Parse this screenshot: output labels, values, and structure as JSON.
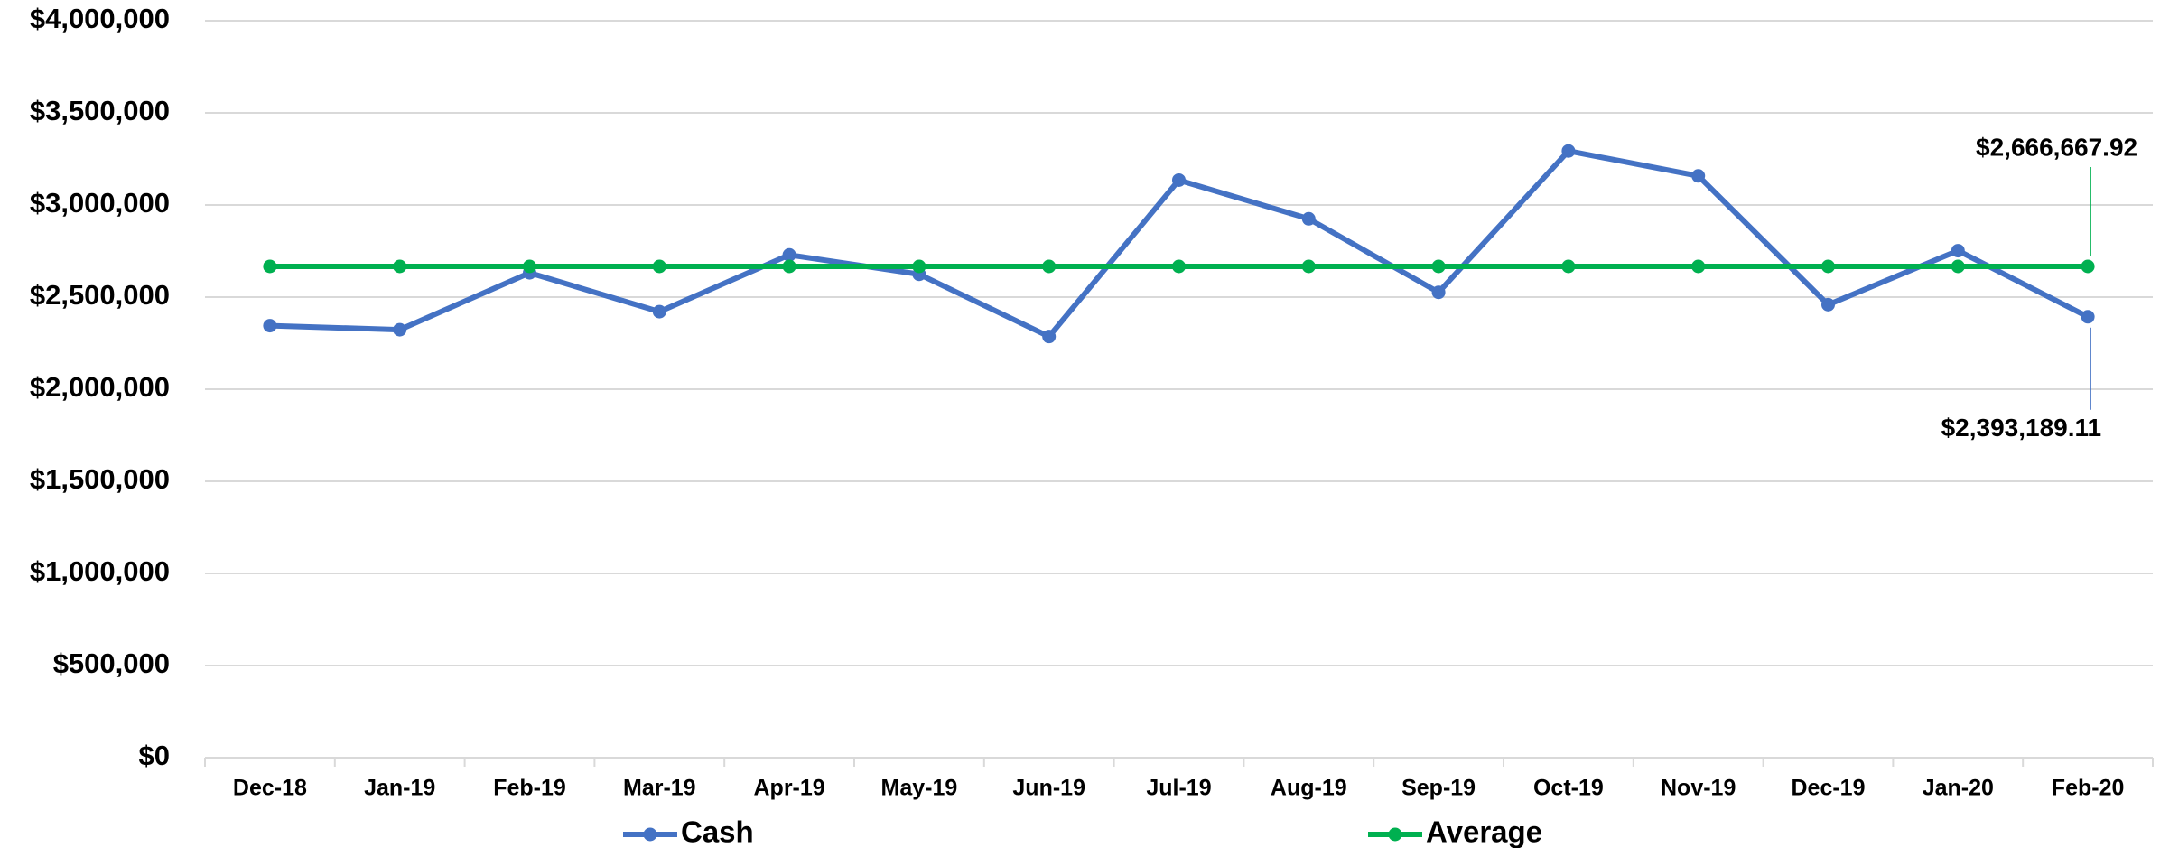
{
  "chart_data": {
    "type": "line",
    "categories": [
      "Dec-18",
      "Jan-19",
      "Feb-19",
      "Mar-19",
      "Apr-19",
      "May-19",
      "Jun-19",
      "Jul-19",
      "Aug-19",
      "Sep-19",
      "Oct-19",
      "Nov-19",
      "Dec-19",
      "Jan-20",
      "Feb-20"
    ],
    "series": [
      {
        "name": "Cash",
        "color": "#4472c4",
        "values": [
          2345000,
          2323000,
          2632000,
          2421000,
          2729000,
          2624000,
          2286000,
          3135000,
          2925000,
          2526000,
          3293000,
          3158000,
          2459000,
          2752000,
          2393189.11
        ],
        "value_labels": [
          null,
          null,
          null,
          null,
          null,
          null,
          null,
          null,
          null,
          null,
          null,
          null,
          null,
          null,
          "$2,393,189.11"
        ]
      },
      {
        "name": "Average",
        "color": "#00b050",
        "values": [
          2666667.92,
          2666667.92,
          2666667.92,
          2666667.92,
          2666667.92,
          2666667.92,
          2666667.92,
          2666667.92,
          2666667.92,
          2666667.92,
          2666667.92,
          2666667.92,
          2666667.92,
          2666667.92,
          2666667.92
        ],
        "value_labels": [
          null,
          null,
          null,
          null,
          null,
          null,
          null,
          null,
          null,
          null,
          null,
          null,
          null,
          null,
          "$2,666,667.92"
        ]
      }
    ],
    "ylim": [
      0,
      4000000
    ],
    "yticks": [
      {
        "value": 0,
        "label": "$0"
      },
      {
        "value": 500000,
        "label": "$500,000"
      },
      {
        "value": 1000000,
        "label": "$1,000,000"
      },
      {
        "value": 1500000,
        "label": "$1,500,000"
      },
      {
        "value": 2000000,
        "label": "$2,000,000"
      },
      {
        "value": 2500000,
        "label": "$2,500,000"
      },
      {
        "value": 3000000,
        "label": "$3,000,000"
      },
      {
        "value": 3500000,
        "label": "$3,500,000"
      },
      {
        "value": 4000000,
        "label": "$4,000,000"
      }
    ],
    "grid": true,
    "legend": "bottom"
  }
}
